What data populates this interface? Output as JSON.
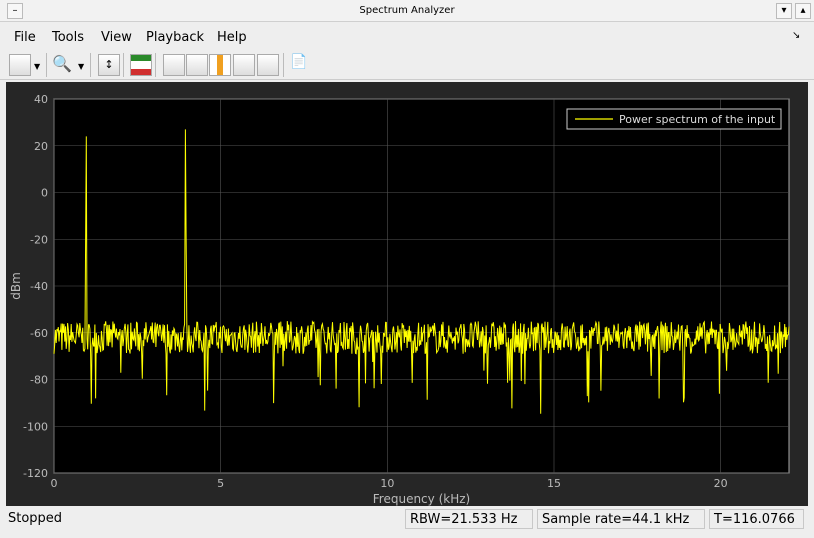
{
  "window": {
    "title": "Spectrum Analyzer"
  },
  "menu": [
    "File",
    "Tools",
    "View",
    "Playback",
    "Help"
  ],
  "toolbar": [
    {
      "icon": "settings-icon"
    },
    {
      "icon": "zoom-in-icon"
    },
    {
      "icon": "scale-axes-icon"
    },
    {
      "icon": "spectrum-mask-icon"
    },
    {
      "icon": "data-cursor-icon"
    },
    {
      "icon": "measurement-ruler-icon"
    },
    {
      "icon": "channel-measurements-icon"
    },
    {
      "icon": "distortion-measurements-icon"
    },
    {
      "icon": "ccdf-icon"
    },
    {
      "icon": "generate-script-icon"
    }
  ],
  "status": {
    "state": "Stopped",
    "rbw": "RBW=21.533 Hz",
    "sample_rate": "Sample rate=44.1 kHz",
    "time": "T=116.0766"
  },
  "chart_data": {
    "type": "line",
    "xlabel": "Frequency (kHz)",
    "ylabel": "dBm",
    "xlim": [
      0,
      22.05
    ],
    "ylim": [
      -120,
      40
    ],
    "xticks": [
      0,
      5,
      10,
      15,
      20
    ],
    "yticks": [
      40,
      20,
      0,
      -20,
      -40,
      -60,
      -80,
      -100,
      -120
    ],
    "grid": true,
    "legend_position": "top-right",
    "series": [
      {
        "name": "Power spectrum of the input",
        "color": "#ffff00",
        "noise_floor_dbm": -62,
        "peaks": [
          {
            "x": 0.96,
            "y": 24
          },
          {
            "x": 3.95,
            "y": 27
          }
        ]
      }
    ],
    "background": "#000000",
    "axes_color": "#aaaaaa"
  }
}
